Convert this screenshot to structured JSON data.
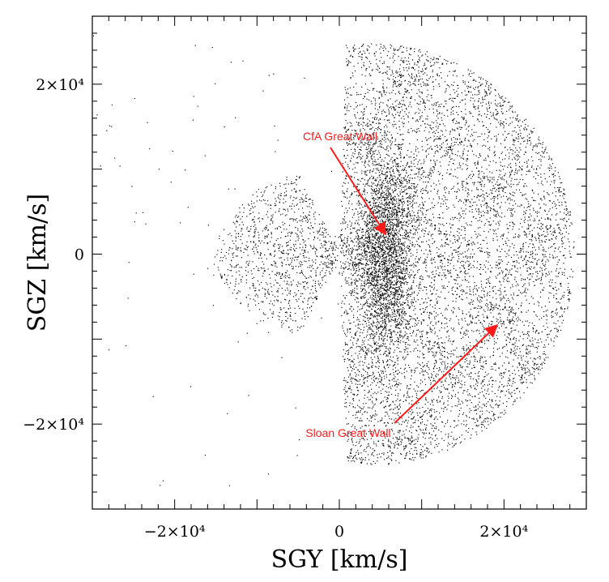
{
  "chart_data": {
    "type": "scatter",
    "xlabel": "SGY [km/s]",
    "ylabel": "SGZ [km/s]",
    "xlim": [
      -30000,
      30000
    ],
    "ylim": [
      -30000,
      28000
    ],
    "x_ticks": [
      {
        "value": -20000,
        "label": "−2×10⁴"
      },
      {
        "value": 0,
        "label": "0"
      },
      {
        "value": 20000,
        "label": "2×10⁴"
      }
    ],
    "y_ticks": [
      {
        "value": 20000,
        "label": "2×10⁴"
      },
      {
        "value": 0,
        "label": "0"
      },
      {
        "value": -20000,
        "label": "−2×10⁴"
      }
    ],
    "annotations": [
      {
        "text": "CfA Great Wall",
        "target": [
          5500,
          2500
        ],
        "color": "#ff1a1a"
      },
      {
        "text": "Sloan Great Wall",
        "target": [
          19000,
          -8500
        ],
        "color": "#ff1a1a"
      }
    ],
    "point_color": "#000000",
    "grid": false
  }
}
